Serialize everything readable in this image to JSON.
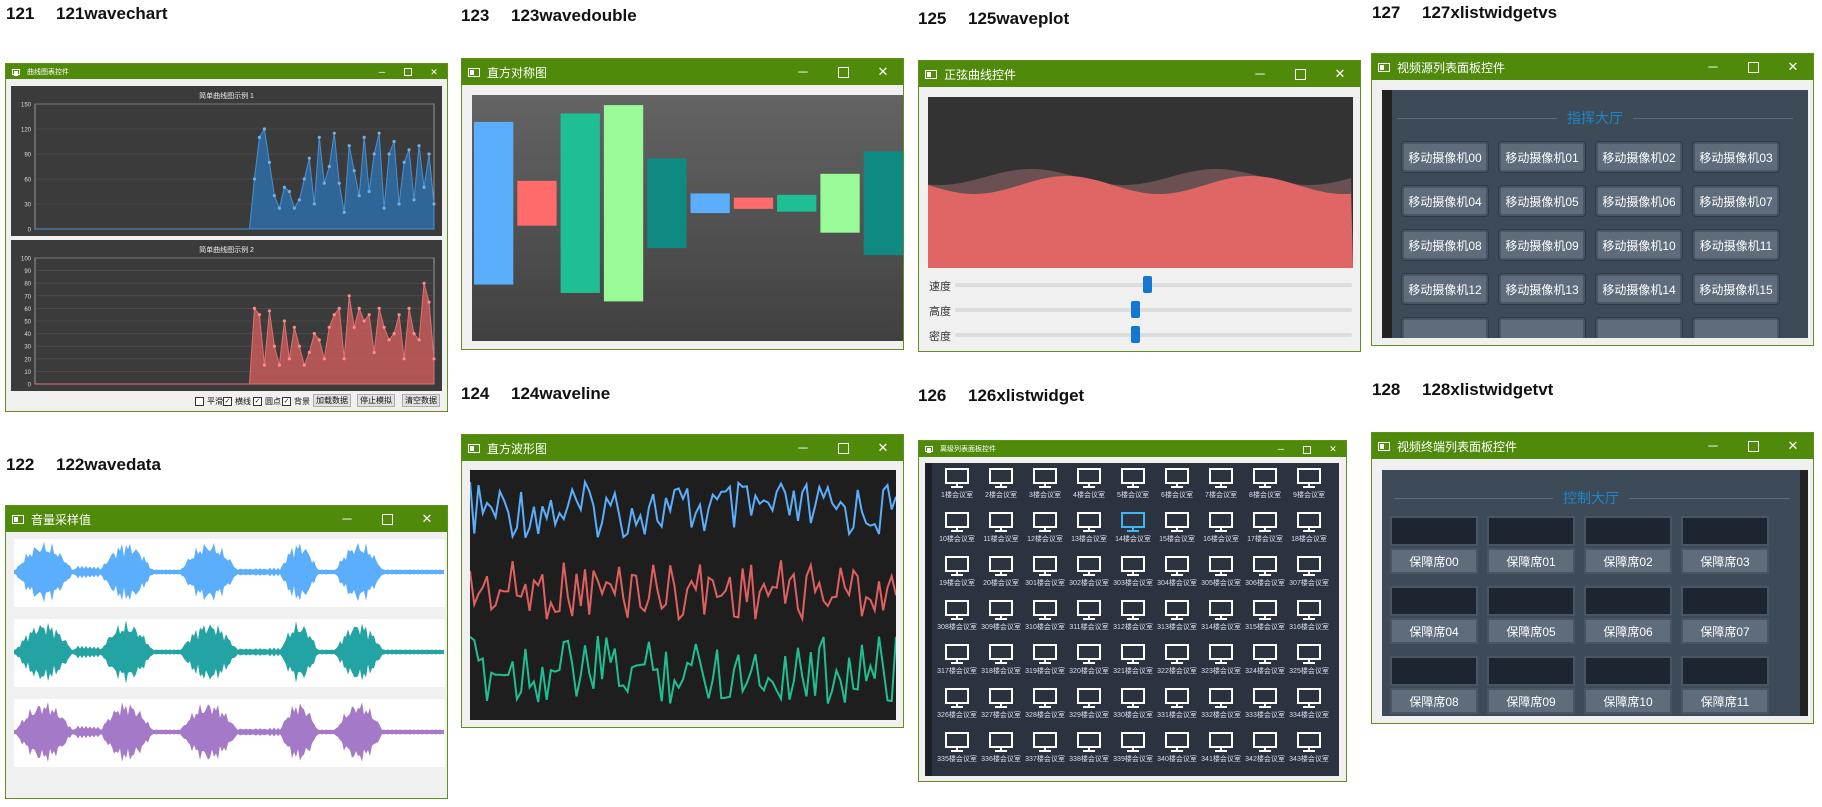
{
  "headers": [
    {
      "num": "121",
      "name": "121wavechart"
    },
    {
      "num": "122",
      "name": "122wavedata"
    },
    {
      "num": "123",
      "name": "123wavedouble"
    },
    {
      "num": "124",
      "name": "124waveline"
    },
    {
      "num": "125",
      "name": "125waveplot"
    },
    {
      "num": "126",
      "name": "126xlistwidget"
    },
    {
      "num": "127",
      "name": "127xlistwidgetvs"
    },
    {
      "num": "128",
      "name": "128xlistwidgetvt"
    }
  ],
  "controls": {
    "min": "─",
    "close": "✕"
  },
  "w121": {
    "title": "曲线图表控件",
    "chart_data": [
      {
        "type": "area",
        "title": "简单曲线图示例 1",
        "yticks": [
          "0",
          "30",
          "60",
          "90",
          "120",
          "150"
        ],
        "ylim": [
          0,
          150
        ],
        "color": "#2f6fa8",
        "values": [
          0,
          0,
          0,
          0,
          0,
          0,
          0,
          0,
          0,
          0,
          0,
          0,
          0,
          0,
          0,
          0,
          0,
          0,
          0,
          0,
          0,
          0,
          0,
          0,
          0,
          0,
          0,
          0,
          0,
          0,
          0,
          0,
          0,
          0,
          0,
          0,
          0,
          0,
          0,
          0,
          0,
          0,
          0,
          0,
          60,
          110,
          120,
          80,
          40,
          25,
          50,
          45,
          25,
          35,
          60,
          85,
          30,
          110,
          55,
          75,
          115,
          55,
          20,
          100,
          70,
          40,
          110,
          45,
          90,
          115,
          25,
          90,
          105,
          30,
          80,
          95,
          35,
          100,
          50,
          90,
          30
        ]
      },
      {
        "type": "area",
        "title": "简单曲线图示例 2",
        "yticks": [
          "0",
          "10",
          "20",
          "30",
          "40",
          "50",
          "60",
          "70",
          "80",
          "90",
          "100"
        ],
        "ylim": [
          0,
          100
        ],
        "color": "#c85a5a",
        "values": [
          0,
          0,
          0,
          0,
          0,
          0,
          0,
          0,
          0,
          0,
          0,
          0,
          0,
          0,
          0,
          0,
          0,
          0,
          0,
          0,
          0,
          0,
          0,
          0,
          0,
          0,
          0,
          0,
          0,
          0,
          0,
          0,
          0,
          0,
          0,
          0,
          0,
          0,
          0,
          0,
          0,
          0,
          0,
          0,
          60,
          55,
          15,
          58,
          30,
          15,
          50,
          20,
          45,
          30,
          15,
          25,
          40,
          35,
          20,
          45,
          55,
          60,
          20,
          70,
          45,
          60,
          50,
          55,
          25,
          60,
          45,
          35,
          40,
          55,
          20,
          60,
          40,
          35,
          80,
          65,
          20
        ]
      }
    ],
    "checks": [
      {
        "label": "平滑",
        "checked": false
      },
      {
        "label": "横线",
        "checked": true
      },
      {
        "label": "圆点",
        "checked": true
      },
      {
        "label": "背景",
        "checked": true
      }
    ],
    "buttons": [
      "加载数据",
      "停止模拟",
      "清空数据"
    ]
  },
  "w122": {
    "title": "音量采样值",
    "colors": [
      "#5aaefb",
      "#23a3a3",
      "#a47ac8"
    ]
  },
  "w123": {
    "title": "直方对称图",
    "chart_data": {
      "type": "bar",
      "values": [
        58,
        16,
        64,
        70,
        32,
        7,
        4,
        6,
        21,
        37
      ],
      "colors": [
        "#5aaefb",
        "#ff6b6b",
        "#1fbf94",
        "#98fb98",
        "#0f8a82",
        "#5aaefb",
        "#ff6b6b",
        "#1fbf94",
        "#98fb98",
        "#0f8a82"
      ]
    }
  },
  "w124": {
    "title": "直方波形图",
    "colors": [
      "#5aaefb",
      "#e06060",
      "#1fbf94"
    ]
  },
  "w125": {
    "title": "正弦曲线控件",
    "sliders": [
      {
        "label": "速度",
        "value": 0.5
      },
      {
        "label": "高度",
        "value": 0.44
      },
      {
        "label": "密度",
        "value": 0.44
      }
    ]
  },
  "w126": {
    "title": "离级列表面板控件",
    "items": [
      "1楼会议室",
      "2楼会议室",
      "3楼会议室",
      "4楼会议室",
      "5楼会议室",
      "6楼会议室",
      "7楼会议室",
      "8楼会议室",
      "9楼会议室",
      "10楼会议室",
      "11楼会议室",
      "12楼会议室",
      "13楼会议室",
      "14楼会议室",
      "15楼会议室",
      "16楼会议室",
      "17楼会议室",
      "18楼会议室",
      "19楼会议室",
      "20楼会议室",
      "301楼会议室",
      "302楼会议室",
      "303楼会议室",
      "304楼会议室",
      "305楼会议室",
      "306楼会议室",
      "307楼会议室",
      "308楼会议室",
      "309楼会议室",
      "310楼会议室",
      "311楼会议室",
      "312楼会议室",
      "313楼会议室",
      "314楼会议室",
      "315楼会议室",
      "316楼会议室",
      "317楼会议室",
      "318楼会议室",
      "319楼会议室",
      "320楼会议室",
      "321楼会议室",
      "322楼会议室",
      "323楼会议室",
      "324楼会议室",
      "325楼会议室",
      "326楼会议室",
      "327楼会议室",
      "328楼会议室",
      "329楼会议室",
      "330楼会议室",
      "331楼会议室",
      "332楼会议室",
      "333楼会议室",
      "334楼会议室",
      "335楼会议室",
      "336楼会议室",
      "337楼会议室",
      "338楼会议室",
      "339楼会议室",
      "340楼会议室",
      "341楼会议室",
      "342楼会议室",
      "343楼会议室"
    ],
    "highlight_index": 13
  },
  "w127": {
    "title": "视频源列表面板控件",
    "hall": "指挥大厅",
    "cams": [
      "移动摄像机00",
      "移动摄像机01",
      "移动摄像机02",
      "移动摄像机03",
      "移动摄像机04",
      "移动摄像机05",
      "移动摄像机06",
      "移动摄像机07",
      "移动摄像机08",
      "移动摄像机09",
      "移动摄像机10",
      "移动摄像机11",
      "移动摄像机12",
      "移动摄像机13",
      "移动摄像机14",
      "移动摄像机15"
    ]
  },
  "w128": {
    "title": "视频终端列表面板控件",
    "hall": "控制大厅",
    "seats": [
      "保障席00",
      "保障席01",
      "保障席02",
      "保障席03",
      "保障席04",
      "保障席05",
      "保障席06",
      "保障席07",
      "保障席08",
      "保障席09",
      "保障席10",
      "保障席11"
    ]
  }
}
